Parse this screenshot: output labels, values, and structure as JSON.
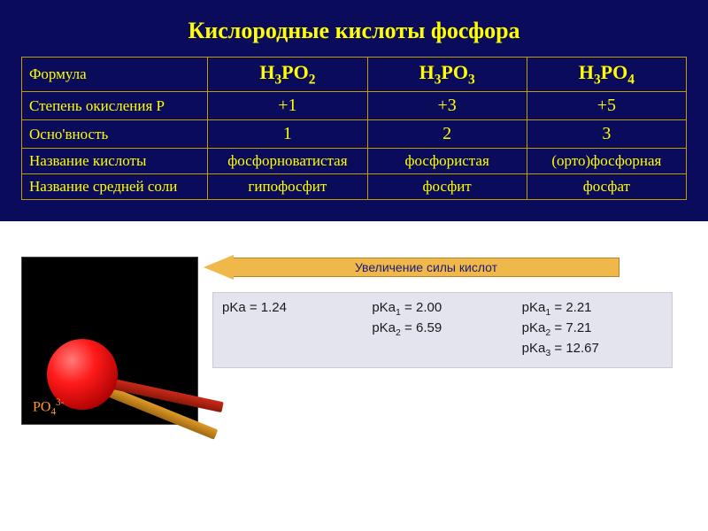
{
  "title": "Кислородные кислоты фосфора",
  "table": {
    "row_labels": [
      "Формула",
      "Степень окисления Р",
      "Осно'вность",
      "Название кислоты",
      "Название средней соли"
    ],
    "columns": [
      {
        "formula_html": "H<span class='sub'>3</span>PO<span class='sub'>2</span>",
        "oxidation": "+1",
        "basicity": "1",
        "acid_name": "фосфорноватистая",
        "salt_name": "гипофосфит"
      },
      {
        "formula_html": "H<span class='sub'>3</span>PO<span class='sub'>3</span>",
        "oxidation": "+3",
        "basicity": "2",
        "acid_name": "фосфористая",
        "salt_name": "фосфит"
      },
      {
        "formula_html": "H<span class='sub'>3</span>PO<span class='sub'>4</span>",
        "oxidation": "+5",
        "basicity": "3",
        "acid_name": "(орто)фосфорная",
        "salt_name": "фосфат"
      }
    ]
  },
  "arrow_label": "Увеличение силы кислот",
  "pka": {
    "col1": [
      "pKa = 1.24"
    ],
    "col2": [
      "pKa₁ = 2.00",
      "pKa₂ = 6.59"
    ],
    "col3": [
      "pKa₁ = 2.21",
      "pKa₂ = 7.21",
      "pKa₃ = 12.67"
    ]
  },
  "molecule_label_html": "PO<span class='sub'>4</span><span class='sup'>3-</span>",
  "colors": {
    "slide_bg": "#0b0b5c",
    "text_yellow": "#ffff00",
    "border": "#c0a000",
    "arrow_fill": "#f0b84a",
    "arrow_border": "#b88820",
    "pka_bg": "#e4e4ee",
    "mol_label": "#ff9a2a"
  },
  "fonts": {
    "title_size_pt": 20,
    "table_body_pt": 14,
    "pka_pt": 11
  }
}
